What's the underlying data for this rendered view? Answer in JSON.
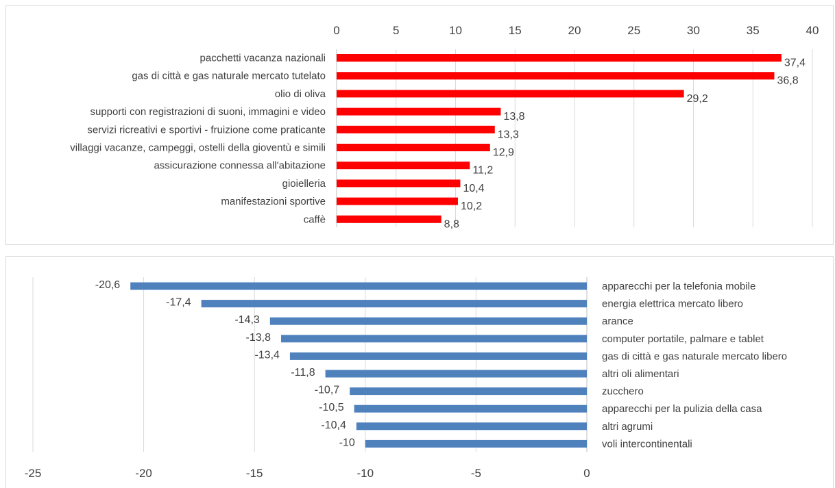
{
  "chart_data": [
    {
      "type": "bar",
      "orientation": "horizontal",
      "xlim": [
        0,
        40
      ],
      "xticks": [
        "0",
        "5",
        "10",
        "15",
        "20",
        "25",
        "30",
        "35",
        "40"
      ],
      "axis_position": "top",
      "grid": true,
      "bar_color": "#ff0000",
      "categories": [
        "pacchetti vacanza nazionali",
        "gas di città  e gas naturale mercato tutelato",
        "olio di oliva",
        "supporti con registrazioni di suoni, immagini e video",
        "servizi ricreativi e sportivi - fruizione come praticante",
        "villaggi vacanze, campeggi, ostelli della gioventù e simili",
        "assicurazione connessa all'abitazione",
        "gioielleria",
        "manifestazioni sportive",
        "caffè"
      ],
      "values": [
        37.4,
        36.8,
        29.2,
        13.8,
        13.3,
        12.9,
        11.2,
        10.4,
        10.2,
        8.8
      ],
      "labels": [
        "37,4",
        "36,8",
        "29,2",
        "13,8",
        "13,3",
        "12,9",
        "11,2",
        "10,4",
        "10,2",
        "8,8"
      ]
    },
    {
      "type": "bar",
      "orientation": "horizontal",
      "xlim": [
        -25,
        0
      ],
      "xticks": [
        "-25",
        "-20",
        "-15",
        "-10",
        "-5",
        "0"
      ],
      "axis_position": "bottom",
      "grid": true,
      "bar_color": "#4f81bd",
      "categories": [
        "apparecchi per la telefonia mobile",
        "energia elettrica mercato libero",
        "arance",
        "computer portatile, palmare e tablet",
        "gas di città  e gas naturale mercato libero",
        "altri oli alimentari",
        "zucchero",
        "apparecchi per la pulizia della casa",
        "altri agrumi",
        "voli intercontinentali"
      ],
      "values": [
        -20.6,
        -17.4,
        -14.3,
        -13.8,
        -13.4,
        -11.8,
        -10.7,
        -10.5,
        -10.4,
        -10
      ],
      "labels": [
        "-20,6",
        "-17,4",
        "-14,3",
        "-13,8",
        "-13,4",
        "-11,8",
        "-10,7",
        "-10,5",
        "-10,4",
        "-10"
      ]
    }
  ]
}
